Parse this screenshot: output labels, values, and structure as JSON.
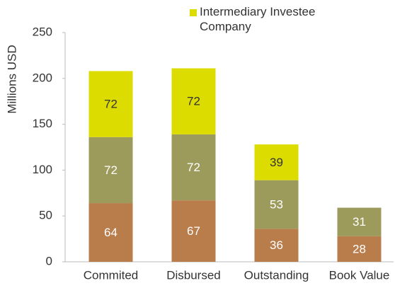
{
  "chart_data": {
    "type": "stacked_bar",
    "y_label": "Millions USD",
    "categories": [
      "Commited",
      "Disbursed",
      "Outstanding",
      "Book Value"
    ],
    "series": [
      {
        "color": "#b97d4b",
        "label_color": "#ffffff",
        "values": [
          64,
          67,
          36,
          28
        ]
      },
      {
        "color": "#9c9b5b",
        "label_color": "#ffffff",
        "values": [
          72,
          72,
          53,
          31
        ]
      },
      {
        "name": "Intermediary Investee Company",
        "color": "#dcdc00",
        "label_color": "#333333",
        "values": [
          72,
          72,
          39,
          null
        ]
      }
    ],
    "ylim": [
      0,
      250
    ],
    "yticks": [
      0,
      50,
      100,
      150,
      200,
      250
    ],
    "legend": "top"
  }
}
